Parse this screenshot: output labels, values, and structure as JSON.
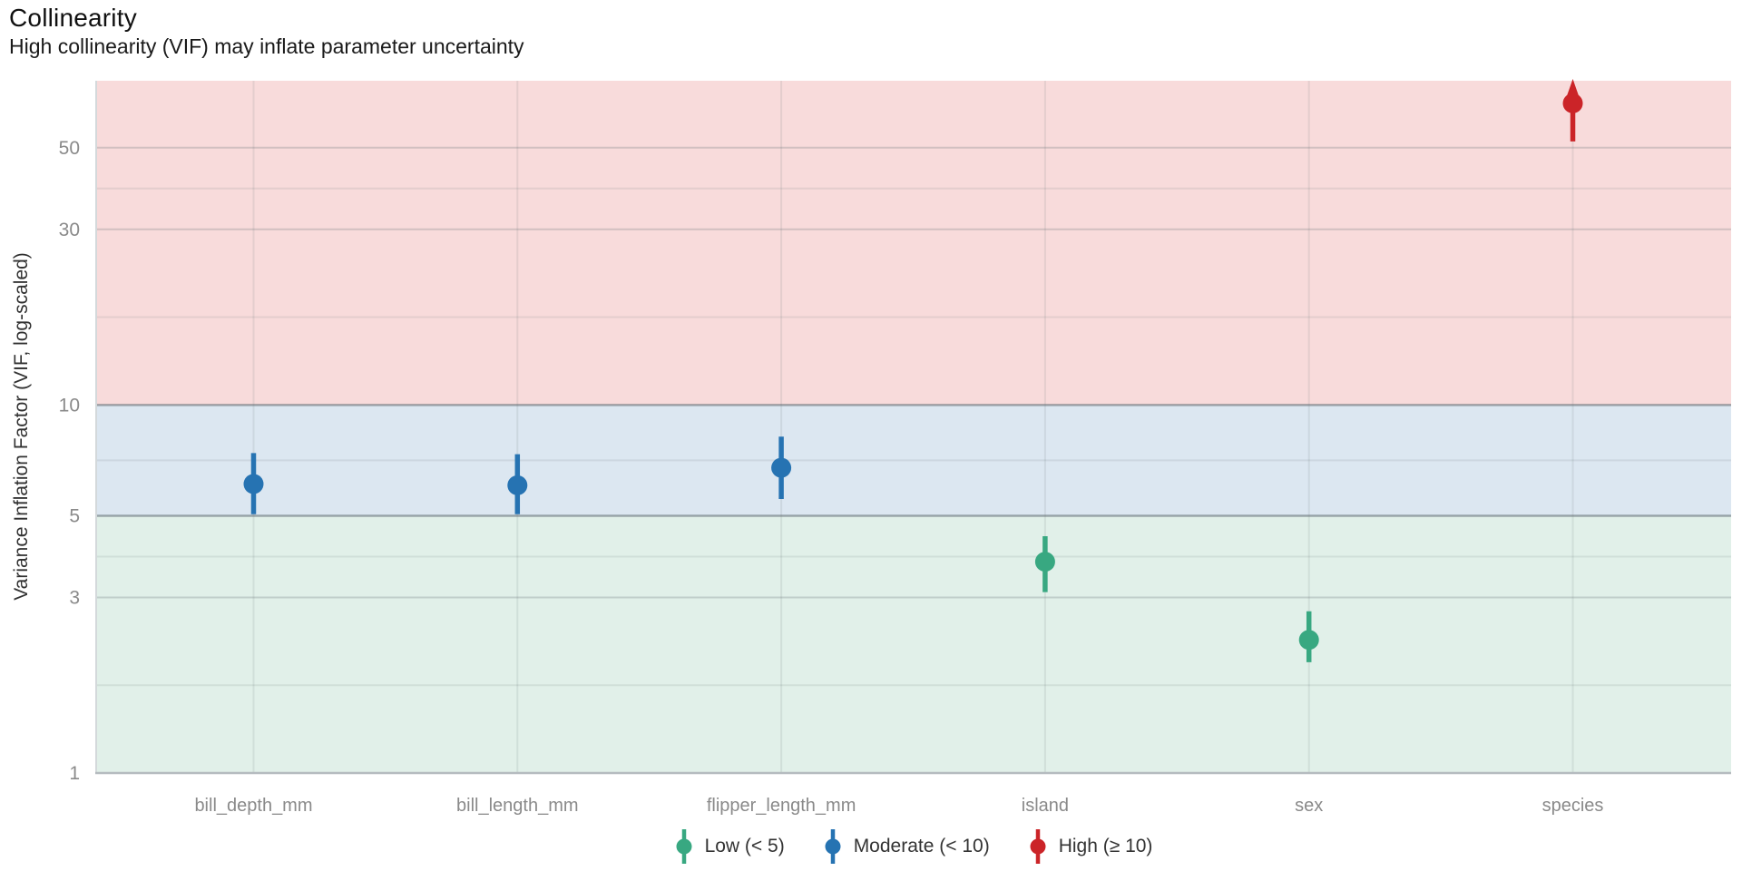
{
  "header": {
    "title": "Collinearity",
    "subtitle": "High collinearity (VIF) may inflate parameter uncertainty"
  },
  "chart_data": {
    "type": "scatter",
    "subtype": "pointrange-vif",
    "title": "Collinearity",
    "subtitle": "High collinearity (VIF) may inflate parameter uncertainty",
    "xlabel": "",
    "ylabel": "Variance Inflation Factor (VIF, log-scaled)",
    "y_log_scale": true,
    "ylim": [
      1,
      76
    ],
    "yticks": [
      1,
      3,
      5,
      10,
      30,
      50
    ],
    "ytick_labels": [
      "1",
      "3",
      "5",
      "10",
      "30",
      "50"
    ],
    "minor_gridlines": [
      1.732,
      3.873,
      7.071,
      17.321,
      38.73
    ],
    "thresholds": [
      5,
      10
    ],
    "categories": [
      "bill_depth_mm",
      "bill_length_mm",
      "flipper_length_mm",
      "island",
      "sex",
      "species"
    ],
    "points": [
      {
        "feature": "bill_depth_mm",
        "vif": 6.1,
        "ci_low": 5.05,
        "ci_high": 7.4,
        "level": "moderate",
        "ci_high_clipped": false
      },
      {
        "feature": "bill_length_mm",
        "vif": 6.05,
        "ci_low": 5.05,
        "ci_high": 7.35,
        "level": "moderate",
        "ci_high_clipped": false
      },
      {
        "feature": "flipper_length_mm",
        "vif": 6.75,
        "ci_low": 5.55,
        "ci_high": 8.2,
        "level": "moderate",
        "ci_high_clipped": false
      },
      {
        "feature": "island",
        "vif": 3.75,
        "ci_low": 3.1,
        "ci_high": 4.4,
        "level": "low",
        "ci_high_clipped": false
      },
      {
        "feature": "sex",
        "vif": 2.3,
        "ci_low": 2.0,
        "ci_high": 2.75,
        "level": "low",
        "ci_high_clipped": false
      },
      {
        "feature": "species",
        "vif": 66,
        "ci_low": 52,
        "ci_high": null,
        "level": "high",
        "ci_high_clipped": true
      }
    ],
    "levels": [
      {
        "id": "low",
        "label": "Low (< 5)",
        "color": "#38a881"
      },
      {
        "id": "moderate",
        "label": "Moderate (< 10)",
        "color": "#2673b2"
      },
      {
        "id": "high",
        "label": "High (≥ 10)",
        "color": "#cb2428"
      }
    ],
    "bands": [
      {
        "level": "low",
        "from": 1,
        "to": 5,
        "color": "#e1f0e9"
      },
      {
        "level": "moderate",
        "from": 5,
        "to": 10,
        "color": "#dce7f1"
      },
      {
        "level": "high",
        "from": 10,
        "to": 76,
        "color": "#f8dbdb"
      }
    ],
    "legend_position": "bottom",
    "grid": true,
    "style_colors": {
      "tick_label": "#8a8a8a",
      "x_label": "#8a8a8a",
      "major_grid": "rgba(107,117,122,0.28)",
      "minor_grid": "rgba(107,117,122,0.14)",
      "threshold_line": "rgba(100,110,118,0.45)",
      "axis_line": "#b5bbbf",
      "panel_edge": "#d4d9db"
    }
  }
}
